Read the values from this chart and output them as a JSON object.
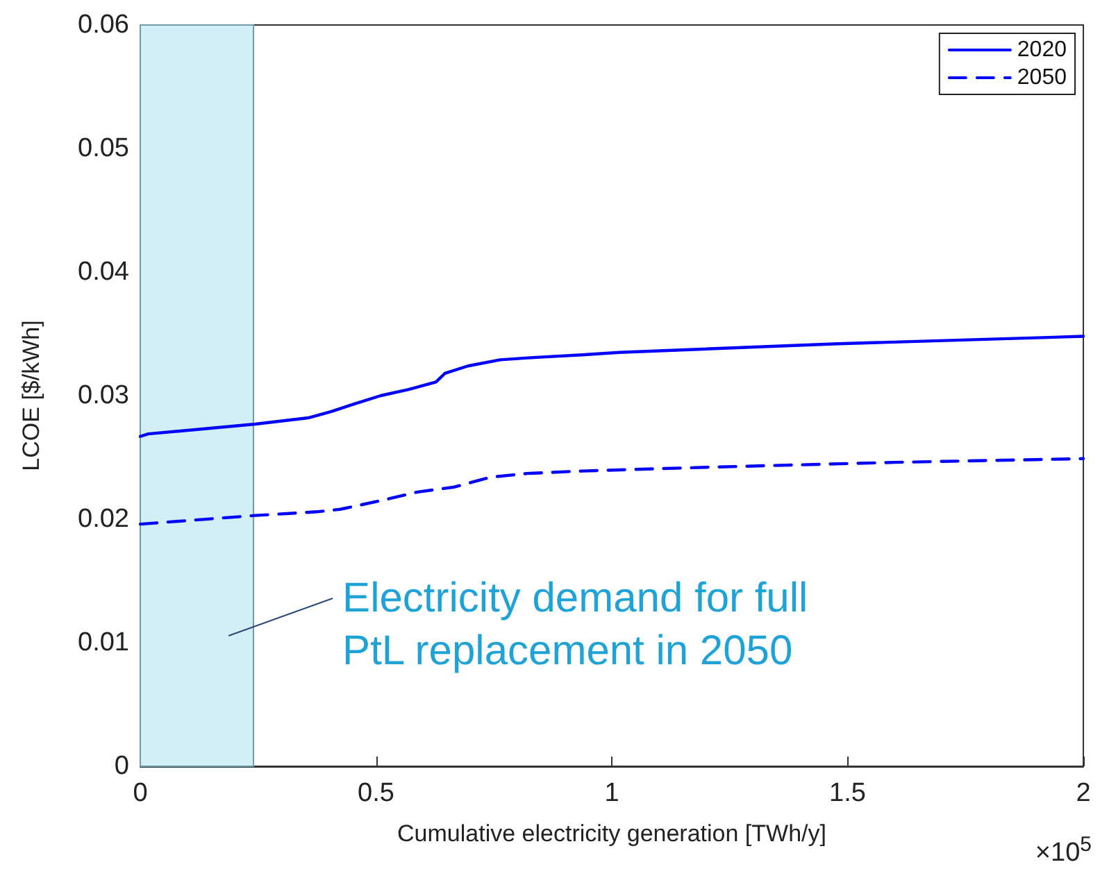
{
  "chart_data": {
    "type": "line",
    "xlabel": "Cumulative electricity generation [TWh/y]",
    "ylabel": "LCOE [$/kWh]",
    "series": [
      {
        "name": "2020",
        "color": "#0000ff",
        "line_style": "solid",
        "x": [
          0,
          0.017,
          0.244,
          0.356,
          0.404,
          0.452,
          0.51,
          0.569,
          0.627,
          0.646,
          0.695,
          0.763,
          0.84,
          0.937,
          1.015,
          1.48,
          2.0
        ],
        "values": [
          0.0267,
          0.0269,
          0.0277,
          0.0282,
          0.0287,
          0.0293,
          0.03,
          0.0305,
          0.0311,
          0.0318,
          0.0324,
          0.0329,
          0.0331,
          0.0333,
          0.0335,
          0.0342,
          0.0348
        ]
      },
      {
        "name": "2050",
        "color": "#0000ff",
        "line_style": "dashed",
        "x": [
          0,
          0.244,
          0.375,
          0.424,
          0.51,
          0.588,
          0.666,
          0.743,
          0.82,
          0.937,
          1.2,
          1.6,
          2.0
        ],
        "values": [
          0.0196,
          0.0203,
          0.0206,
          0.0208,
          0.0215,
          0.0222,
          0.0226,
          0.0234,
          0.0237,
          0.0239,
          0.0242,
          0.0246,
          0.0249
        ]
      }
    ],
    "xlim": [
      0,
      2
    ],
    "xticks": [
      0,
      0.5,
      1,
      1.5,
      2
    ],
    "ylim": [
      0,
      0.06
    ],
    "yticks": [
      0,
      0.01,
      0.02,
      0.03,
      0.04,
      0.05,
      0.06
    ],
    "bands": [
      {
        "axis": "x",
        "from": 0,
        "to": 0.24,
        "color": "#d2eff8",
        "label": "Electricity demand for full\nPtL replacement in 2050"
      }
    ],
    "annotations": [
      "×10$^{5}$"
    ],
    "grid": false,
    "legend": "top right",
    "marker": "none"
  }
}
